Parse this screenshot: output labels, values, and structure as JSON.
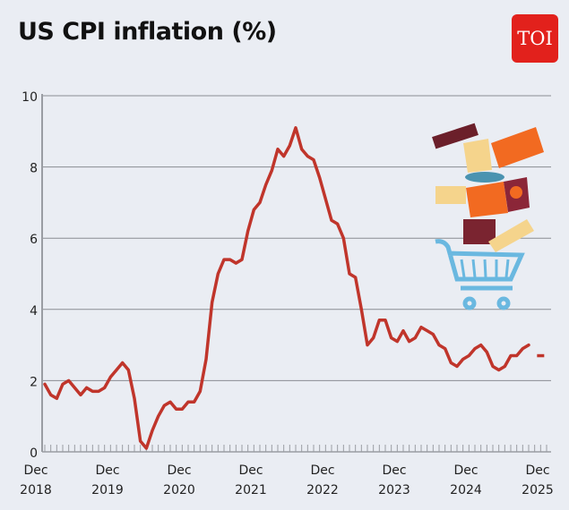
{
  "logo": {
    "text": "TOI",
    "color": "#e2211c"
  },
  "chart_data": {
    "type": "line",
    "title": "US CPI inflation (%)",
    "xlabel": "",
    "ylabel": "",
    "ylim": [
      0,
      10
    ],
    "yticks": [
      0,
      2,
      4,
      6,
      8,
      10
    ],
    "grid": true,
    "x_start": "Dec 2018",
    "x_end": "Dec 2025",
    "x_frequency": "monthly",
    "xtick_labels": [
      [
        "Dec",
        "2018"
      ],
      [
        "Dec",
        "2019"
      ],
      [
        "Dec",
        "2020"
      ],
      [
        "Dec",
        "2021"
      ],
      [
        "Dec",
        "2022"
      ],
      [
        "Dec",
        "2023"
      ],
      [
        "Dec",
        "2024"
      ],
      [
        "Dec",
        "2025"
      ]
    ],
    "line_color": "#c0352b",
    "series": [
      {
        "values": [
          1.9,
          1.6,
          1.5,
          1.9,
          2.0,
          1.8,
          1.6,
          1.8,
          1.7,
          1.7,
          1.8,
          2.1,
          2.3,
          2.5,
          2.3,
          1.5,
          0.3,
          0.1,
          0.6,
          1.0,
          1.3,
          1.4,
          1.2,
          1.2,
          1.4,
          1.4,
          1.7,
          2.6,
          4.2,
          5.0,
          5.4,
          5.4,
          5.3,
          5.4,
          6.2,
          6.8,
          7.0,
          7.5,
          7.9,
          8.5,
          8.3,
          8.6,
          9.1,
          8.5,
          8.3,
          8.2,
          7.7,
          7.1,
          6.5,
          6.4,
          6.0,
          5.0,
          4.9,
          4.0,
          3.0,
          3.2,
          3.7,
          3.7,
          3.2,
          3.1,
          3.4,
          3.1,
          3.2,
          3.5,
          3.4,
          3.3,
          3.0,
          2.9,
          2.5,
          2.4,
          2.6,
          2.7,
          2.9,
          3.0,
          2.8,
          2.4,
          2.3,
          2.4,
          2.7,
          2.7,
          2.9,
          3.0,
          null,
          2.7
        ]
      }
    ]
  }
}
